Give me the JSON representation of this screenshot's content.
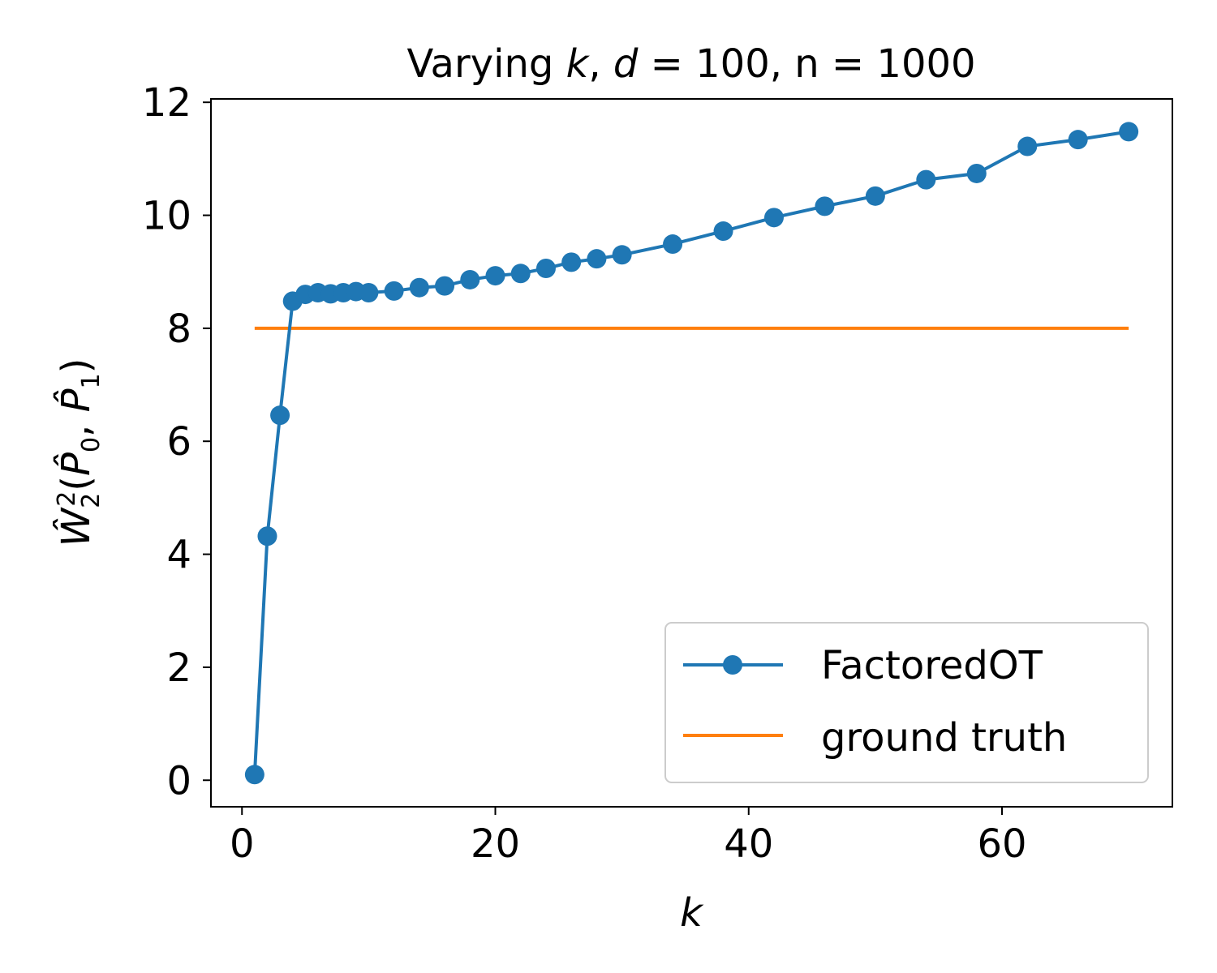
{
  "chart_data": {
    "type": "line",
    "title_parts": [
      "Varying ",
      "k",
      ", ",
      "d",
      " = 100, n = 1000"
    ],
    "xlabel": "k",
    "ylabel": {
      "base": "W",
      "sub": "2",
      "sup": "2",
      "args": [
        "P",
        "0",
        "P",
        "1"
      ],
      "hat": "^"
    },
    "xlim": [
      -2.45,
      73.45
    ],
    "ylim": [
      -0.47,
      12.06
    ],
    "xticks": [
      0,
      20,
      40,
      60
    ],
    "yticks": [
      0,
      2,
      4,
      6,
      8,
      10,
      12
    ],
    "grid": false,
    "legend_position": "lower-right",
    "series": [
      {
        "name": "FactoredOT",
        "color": "#1f77b4",
        "marker": "circle",
        "x": [
          1,
          2,
          3,
          4,
          5,
          6,
          7,
          8,
          9,
          10,
          12,
          14,
          16,
          18,
          20,
          22,
          24,
          26,
          28,
          30,
          34,
          38,
          42,
          46,
          50,
          54,
          58,
          62,
          66,
          70
        ],
        "y": [
          0.1,
          4.32,
          6.46,
          8.48,
          8.6,
          8.63,
          8.61,
          8.63,
          8.65,
          8.63,
          8.66,
          8.72,
          8.75,
          8.86,
          8.93,
          8.97,
          9.06,
          9.17,
          9.23,
          9.3,
          9.49,
          9.72,
          9.96,
          10.16,
          10.34,
          10.63,
          10.74,
          11.22,
          11.34,
          11.48
        ]
      },
      {
        "name": "ground truth",
        "color": "#ff7f0e",
        "marker": "none",
        "x": [
          1,
          70
        ],
        "y": [
          8.0,
          8.0
        ]
      }
    ]
  }
}
